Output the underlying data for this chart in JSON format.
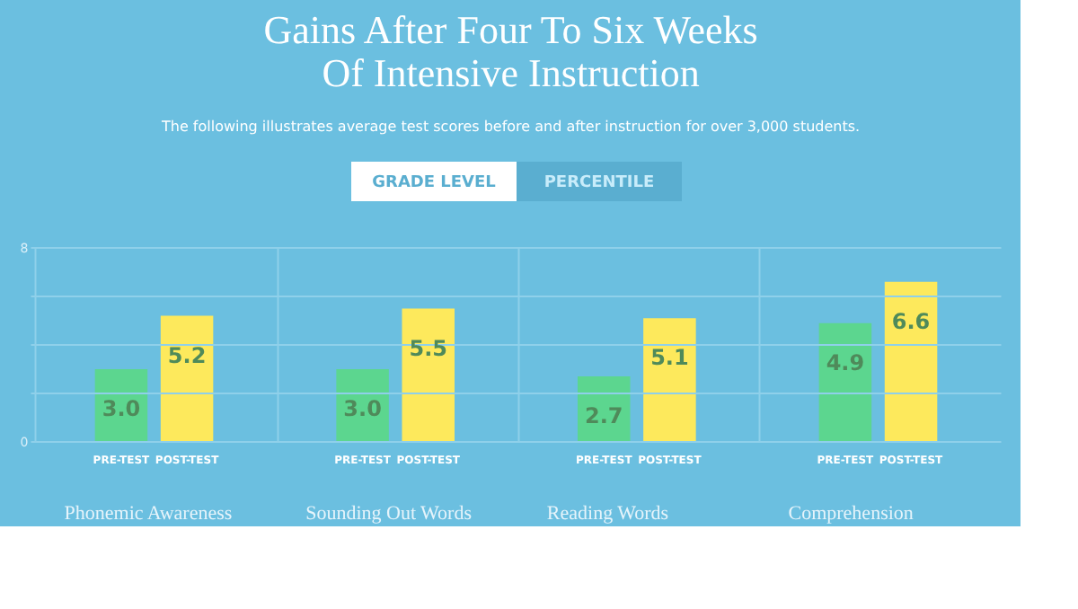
{
  "chart_data": {
    "type": "bar",
    "title": [
      "Gains After Four To Six Weeks",
      "Of Intensive Instruction"
    ],
    "subtitle": "The following illustrates average test scores before and after instruction for over 3,000 students.",
    "annotations": [
      "GRADE LEVEL",
      "PERCENTILE"
    ],
    "categories": [
      "Phonemic Awareness",
      "Sounding Out Words",
      "Reading Words",
      "Comprehension"
    ],
    "series": [
      {
        "name": "PRE-TEST",
        "color": "#5cd68f",
        "values": [
          3.0,
          3.0,
          2.7,
          4.9
        ],
        "value_labels": [
          "3.0",
          "3.0",
          "2.7",
          "4.9"
        ]
      },
      {
        "name": "POST-TEST",
        "color": "#fde95c",
        "values": [
          5.2,
          5.5,
          5.1,
          6.6
        ],
        "value_labels": [
          "5.2",
          "5.5",
          "5.1",
          "6.6"
        ]
      }
    ],
    "ylim": [
      0,
      8
    ],
    "yticks": [
      0,
      {
        "value": 2,
        "label": null
      },
      {
        "value": 4,
        "label": null
      },
      {
        "value": 6,
        "label": null
      },
      8
    ],
    "grid": true
  }
}
